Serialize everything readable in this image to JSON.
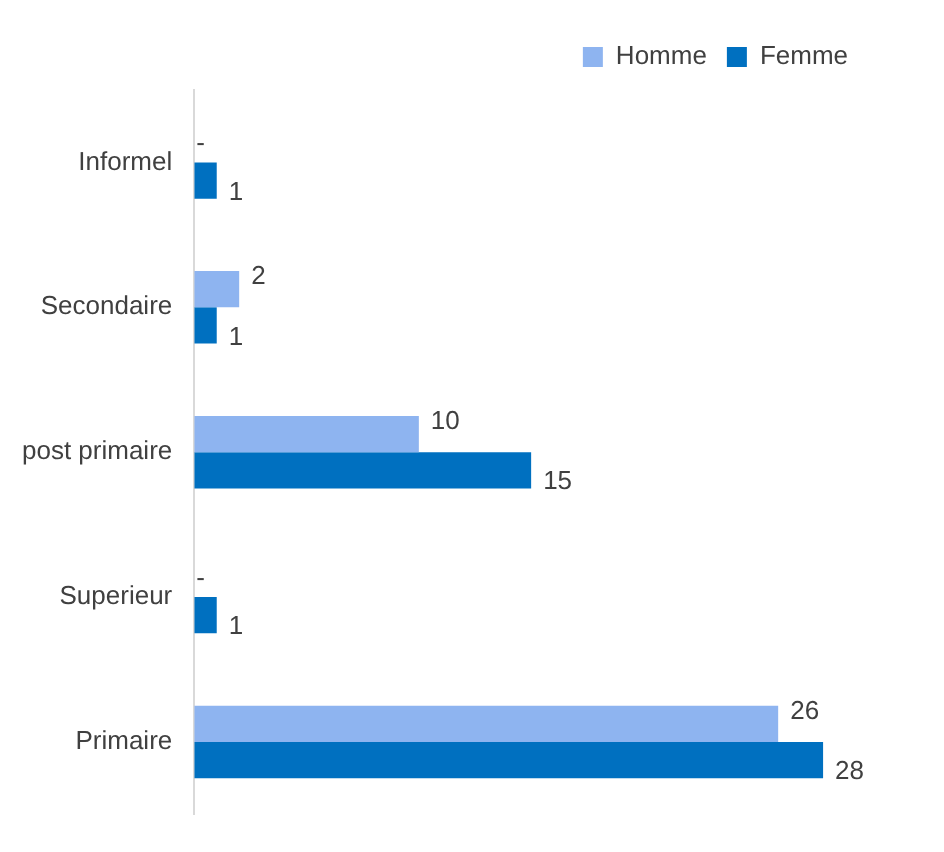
{
  "chart_data": {
    "type": "bar",
    "orientation": "horizontal",
    "categories": [
      "Informel",
      "Secondaire",
      "post primaire",
      "Superieur",
      "Primaire"
    ],
    "series": [
      {
        "name": "Homme",
        "color": "#8eb4f0",
        "values": [
          0,
          2,
          10,
          0,
          26
        ],
        "value_labels": [
          "-",
          "2",
          "10",
          "-",
          "26"
        ]
      },
      {
        "name": "Femme",
        "color": "#0070c0",
        "values": [
          1,
          1,
          15,
          1,
          28
        ],
        "value_labels": [
          "1",
          "1",
          "15",
          "1",
          "28"
        ]
      }
    ],
    "legend": "top right"
  }
}
